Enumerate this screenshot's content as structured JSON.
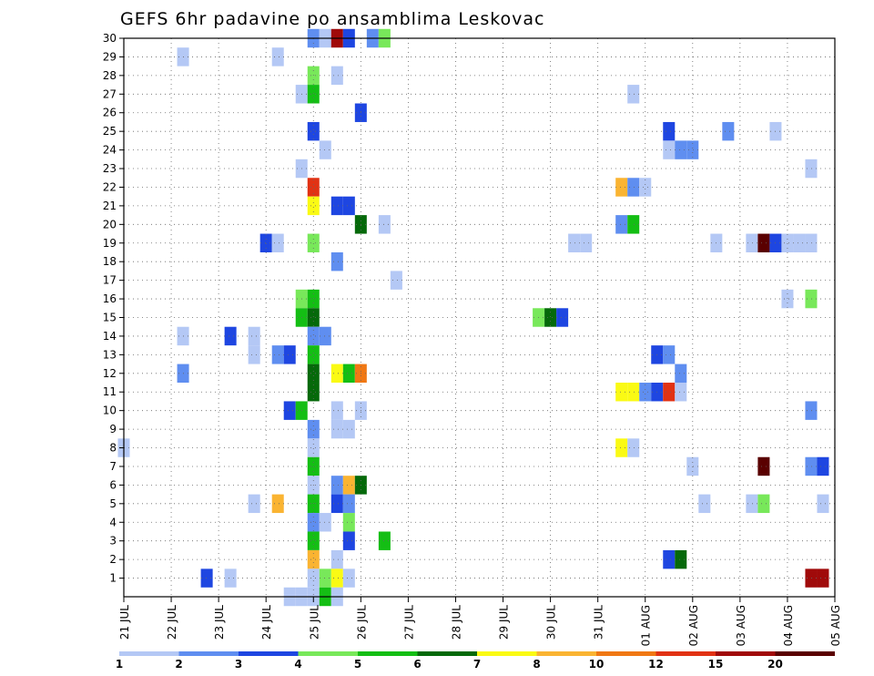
{
  "chart_data": {
    "type": "heatmap",
    "title": "GEFS 6hr padavine po ansamblima Leskovac",
    "x_tick_labels": [
      "21 JUL",
      "22 JUL",
      "23 JUL",
      "24 JUL",
      "25 JUL",
      "26 JUL",
      "27 JUL",
      "28 JUL",
      "29 JUL",
      "30 JUL",
      "31 JUL",
      "01 AUG",
      "02 AUG",
      "03 AUG",
      "04 AUG",
      "05 AUG"
    ],
    "x_range_days": [
      0,
      15
    ],
    "x_step_days": 0.25,
    "y_tick_labels": [
      "1",
      "2",
      "3",
      "4",
      "5",
      "6",
      "7",
      "8",
      "9",
      "10",
      "11",
      "12",
      "13",
      "14",
      "15",
      "16",
      "17",
      "18",
      "19",
      "20",
      "21",
      "22",
      "23",
      "24",
      "25",
      "26",
      "27",
      "28",
      "29",
      "30"
    ],
    "y_range": [
      0,
      30
    ],
    "grid": true,
    "legend_placement": "bottom",
    "legend": {
      "labels": [
        "1",
        "2",
        "3",
        "4",
        "5",
        "6",
        "7",
        "8",
        "10",
        "12",
        "15",
        "20"
      ],
      "colors": [
        "#b4c8f5",
        "#5f8ef0",
        "#1e46e1",
        "#78e85a",
        "#14be14",
        "#05690a",
        "#fafa14",
        "#fab432",
        "#f07814",
        "#e13214",
        "#a00a0a",
        "#5a0000"
      ]
    },
    "cells_note": "[member, time_step(days from 21 JUL), color_index]",
    "cells": [
      [
        30,
        4.0,
        1
      ],
      [
        30,
        4.25,
        0
      ],
      [
        30,
        4.5,
        10
      ],
      [
        30,
        4.75,
        2
      ],
      [
        30,
        5.25,
        1
      ],
      [
        30,
        5.5,
        3
      ],
      [
        29,
        1.25,
        0
      ],
      [
        29,
        3.25,
        0
      ],
      [
        28,
        4.0,
        3
      ],
      [
        28,
        4.5,
        0
      ],
      [
        27,
        3.75,
        0
      ],
      [
        27,
        4.0,
        4
      ],
      [
        27,
        10.75,
        0
      ],
      [
        26,
        5.0,
        2
      ],
      [
        25,
        4.0,
        2
      ],
      [
        25,
        11.5,
        2
      ],
      [
        25,
        12.75,
        1
      ],
      [
        25,
        13.75,
        0
      ],
      [
        24,
        4.25,
        0
      ],
      [
        24,
        11.5,
        0
      ],
      [
        24,
        11.75,
        1
      ],
      [
        24,
        12.0,
        1
      ],
      [
        23,
        3.75,
        0
      ],
      [
        23,
        14.5,
        0
      ],
      [
        22,
        4.0,
        9
      ],
      [
        22,
        10.5,
        7
      ],
      [
        22,
        10.75,
        1
      ],
      [
        22,
        11.0,
        0
      ],
      [
        21,
        4.0,
        6
      ],
      [
        21,
        4.5,
        2
      ],
      [
        21,
        4.75,
        2
      ],
      [
        20,
        5.0,
        5
      ],
      [
        20,
        5.5,
        0
      ],
      [
        20,
        10.5,
        1
      ],
      [
        20,
        10.75,
        4
      ],
      [
        19,
        3.0,
        2
      ],
      [
        19,
        3.25,
        0
      ],
      [
        19,
        4.0,
        3
      ],
      [
        19,
        9.5,
        0
      ],
      [
        19,
        9.75,
        0
      ],
      [
        19,
        12.5,
        0
      ],
      [
        19,
        13.25,
        0
      ],
      [
        19,
        13.5,
        11
      ],
      [
        19,
        13.75,
        2
      ],
      [
        19,
        14.0,
        0
      ],
      [
        19,
        14.25,
        0
      ],
      [
        19,
        14.5,
        0
      ],
      [
        18,
        4.5,
        1
      ],
      [
        17,
        5.75,
        0
      ],
      [
        16,
        3.75,
        3
      ],
      [
        16,
        4.0,
        4
      ],
      [
        16,
        14.0,
        0
      ],
      [
        16,
        14.5,
        3
      ],
      [
        15,
        3.75,
        4
      ],
      [
        15,
        4.0,
        5
      ],
      [
        15,
        8.75,
        3
      ],
      [
        15,
        9.0,
        5
      ],
      [
        15,
        9.25,
        2
      ],
      [
        14,
        1.25,
        0
      ],
      [
        14,
        2.25,
        2
      ],
      [
        14,
        2.75,
        0
      ],
      [
        14,
        4.0,
        1
      ],
      [
        14,
        4.25,
        1
      ],
      [
        13,
        2.75,
        0
      ],
      [
        13,
        3.25,
        1
      ],
      [
        13,
        3.5,
        2
      ],
      [
        13,
        4.0,
        4
      ],
      [
        13,
        11.25,
        2
      ],
      [
        13,
        11.5,
        1
      ],
      [
        12,
        1.25,
        1
      ],
      [
        12,
        4.0,
        5
      ],
      [
        12,
        4.5,
        6
      ],
      [
        12,
        4.75,
        4
      ],
      [
        12,
        5.0,
        8
      ],
      [
        12,
        11.75,
        1
      ],
      [
        11,
        4.0,
        5
      ],
      [
        11,
        10.5,
        6
      ],
      [
        11,
        10.75,
        6
      ],
      [
        11,
        11.0,
        1
      ],
      [
        11,
        11.25,
        2
      ],
      [
        11,
        11.5,
        9
      ],
      [
        11,
        11.75,
        0
      ],
      [
        10,
        3.5,
        2
      ],
      [
        10,
        3.75,
        4
      ],
      [
        10,
        4.5,
        0
      ],
      [
        10,
        5.0,
        0
      ],
      [
        10,
        14.5,
        1
      ],
      [
        9,
        4.0,
        1
      ],
      [
        9,
        4.5,
        0
      ],
      [
        9,
        4.75,
        0
      ],
      [
        8,
        0.0,
        0
      ],
      [
        8,
        4.0,
        0
      ],
      [
        8,
        10.5,
        6
      ],
      [
        8,
        10.75,
        0
      ],
      [
        7,
        4.0,
        4
      ],
      [
        7,
        12.0,
        0
      ],
      [
        7,
        13.5,
        11
      ],
      [
        7,
        14.5,
        1
      ],
      [
        7,
        14.75,
        2
      ],
      [
        6,
        4.0,
        0
      ],
      [
        6,
        4.5,
        1
      ],
      [
        6,
        4.75,
        7
      ],
      [
        6,
        5.0,
        5
      ],
      [
        5,
        2.75,
        0
      ],
      [
        5,
        3.25,
        7
      ],
      [
        5,
        4.0,
        4
      ],
      [
        5,
        4.5,
        2
      ],
      [
        5,
        4.75,
        1
      ],
      [
        5,
        12.25,
        0
      ],
      [
        5,
        13.25,
        0
      ],
      [
        5,
        13.5,
        3
      ],
      [
        5,
        14.75,
        0
      ],
      [
        4,
        4.0,
        1
      ],
      [
        4,
        4.25,
        0
      ],
      [
        4,
        4.75,
        3
      ],
      [
        3,
        4.0,
        4
      ],
      [
        3,
        4.75,
        2
      ],
      [
        3,
        5.5,
        4
      ],
      [
        2,
        4.0,
        7
      ],
      [
        2,
        4.5,
        0
      ],
      [
        2,
        11.5,
        2
      ],
      [
        2,
        11.75,
        5
      ],
      [
        1,
        1.75,
        2
      ],
      [
        1,
        2.25,
        0
      ],
      [
        1,
        4.0,
        0
      ],
      [
        1,
        4.25,
        3
      ],
      [
        1,
        4.5,
        6
      ],
      [
        1,
        4.75,
        0
      ],
      [
        1,
        14.5,
        10
      ],
      [
        1,
        14.75,
        10
      ],
      [
        0,
        3.5,
        0
      ],
      [
        0,
        3.75,
        0
      ],
      [
        0,
        4.0,
        0
      ],
      [
        0,
        4.25,
        4
      ],
      [
        0,
        4.5,
        0
      ]
    ]
  }
}
